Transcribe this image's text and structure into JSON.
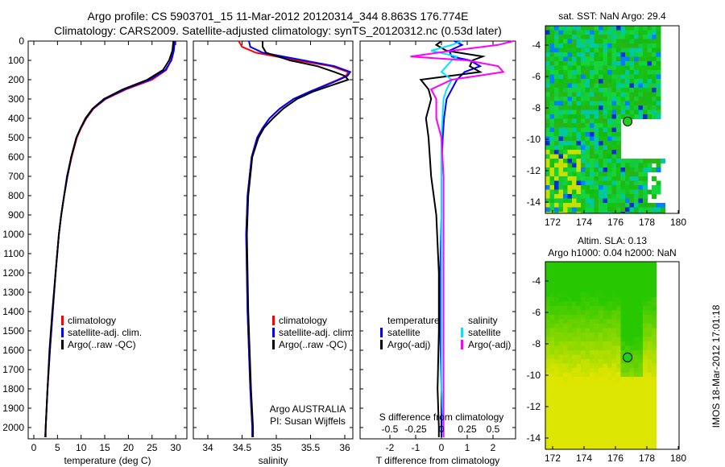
{
  "title": {
    "line1": "Argo profile: CS 5903701_15 11-Mar-2012 20120314_344 8.863S 176.774E",
    "line2": "Climatology: CARS2009. Satellite-adjusted climatology: synTS_20120312.nc (0.53d later)"
  },
  "colors": {
    "climatology": "#ff0000",
    "satellite": "#0000ff",
    "argo": "#000000",
    "sal_satellite": "#00e5ff",
    "sal_argo": "#ff00ff"
  },
  "chart_data": [
    {
      "type": "line",
      "name": "temperature",
      "xlabel": "temperature (deg C)",
      "xlim": [
        -1.2,
        31.5
      ],
      "ylim": [
        2050,
        0
      ],
      "xticks": [
        "0",
        "5",
        "10",
        "15",
        "20",
        "25",
        "30"
      ],
      "xtickvals": [
        0,
        5,
        10,
        15,
        20,
        25,
        30
      ],
      "yticks": [
        "0",
        "100",
        "200",
        "300",
        "400",
        "500",
        "600",
        "700",
        "800",
        "900",
        "1000",
        "1100",
        "1200",
        "1300",
        "1400",
        "1500",
        "1600",
        "1700",
        "1800",
        "1900",
        "2000"
      ],
      "depth": [
        0,
        50,
        100,
        150,
        200,
        250,
        300,
        350,
        400,
        450,
        500,
        600,
        700,
        800,
        900,
        1000,
        1200,
        1400,
        1600,
        1800,
        2000,
        2050
      ],
      "series": [
        {
          "name": "climatology",
          "color": "#ff0000",
          "values": [
            29.6,
            29.4,
            29.0,
            28.0,
            25.0,
            19.5,
            15.2,
            12.6,
            11.1,
            10.0,
            9.1,
            8.0,
            7.1,
            6.4,
            5.8,
            5.3,
            4.6,
            4.0,
            3.4,
            2.9,
            2.5,
            2.4
          ]
        },
        {
          "name": "satellite-adj. clim.",
          "color": "#0000ff",
          "values": [
            29.8,
            29.6,
            29.1,
            27.8,
            24.5,
            19.2,
            15.0,
            12.5,
            11.0,
            9.9,
            9.0,
            7.9,
            7.0,
            6.4,
            5.8,
            5.3,
            4.6,
            4.0,
            3.4,
            2.9,
            2.5,
            2.4
          ]
        },
        {
          "name": "Argo(..raw -QC)",
          "color": "#000000",
          "values": [
            29.5,
            29.3,
            28.6,
            27.3,
            24.0,
            18.8,
            14.8,
            12.4,
            10.9,
            9.9,
            9.0,
            7.9,
            7.1,
            6.4,
            5.8,
            5.3,
            4.6,
            3.9,
            3.3,
            2.9,
            2.5,
            2.5
          ]
        }
      ],
      "legend": [
        "climatology",
        "satellite-adj. clim.",
        "Argo(..raw -QC)"
      ]
    },
    {
      "type": "line",
      "name": "salinity",
      "xlabel": "salinity",
      "xlim": [
        33.7,
        36.1
      ],
      "xticks": [
        "34",
        "34.5",
        "35",
        "35.5",
        "36"
      ],
      "xtickvals": [
        34,
        34.5,
        35,
        35.5,
        36
      ],
      "depth": [
        0,
        30,
        60,
        100,
        130,
        160,
        180,
        200,
        230,
        260,
        300,
        350,
        400,
        450,
        500,
        600,
        800,
        1000,
        1400,
        1800,
        2000,
        2050
      ],
      "series": [
        {
          "name": "climatology",
          "color": "#ff0000",
          "values": [
            34.45,
            34.5,
            34.7,
            35.3,
            35.8,
            36.05,
            36.02,
            35.9,
            35.7,
            35.5,
            35.25,
            35.05,
            34.9,
            34.8,
            34.72,
            34.64,
            34.58,
            34.56,
            34.58,
            34.62,
            34.65,
            34.65
          ]
        },
        {
          "name": "satellite-adj. clim.",
          "color": "#0000ff",
          "values": [
            34.6,
            34.62,
            34.8,
            35.4,
            35.85,
            36.08,
            36.04,
            35.92,
            35.72,
            35.5,
            35.25,
            35.05,
            34.9,
            34.8,
            34.72,
            34.64,
            34.58,
            34.56,
            34.58,
            34.62,
            34.65,
            34.65
          ]
        },
        {
          "name": "Argo(..raw -QC)",
          "color": "#000000",
          "values": [
            34.8,
            34.8,
            34.85,
            35.2,
            35.6,
            35.85,
            36.0,
            36.05,
            35.8,
            35.55,
            35.3,
            35.1,
            34.95,
            34.82,
            34.74,
            34.65,
            34.59,
            34.57,
            34.59,
            34.63,
            34.66,
            34.66
          ]
        }
      ],
      "legend": [
        "climatology",
        "satellite-adj. clim.",
        "Argo(..raw -QC)"
      ],
      "annotation": [
        "Argo AUSTRALIA",
        "PI: Susan Wijffels"
      ]
    },
    {
      "type": "line",
      "name": "differences",
      "xlabel": "T difference from climatology",
      "xlabel_top": "S difference from climatology",
      "xlim": [
        -3.2,
        2.8
      ],
      "xticks": [
        "-2",
        "-1",
        "0",
        "1",
        "2"
      ],
      "xtickvals": [
        -2,
        -1,
        0,
        1,
        2
      ],
      "sticks": [
        "-0.5",
        "-0.25",
        "0",
        "0.25",
        "0.5"
      ],
      "stickvals": [
        -0.5,
        -0.25,
        0,
        0.25,
        0.5
      ],
      "depth": [
        0,
        20,
        50,
        80,
        100,
        130,
        160,
        200,
        250,
        300,
        400,
        500,
        700,
        900,
        1200,
        1500,
        1800,
        2000,
        2050
      ],
      "series": [
        {
          "name": "T satellite",
          "color": "#0000ff",
          "values": [
            0.5,
            0.8,
            0.3,
            0.4,
            1.1,
            1.5,
            0.9,
            0.6,
            0.4,
            0.2,
            0.1,
            0.05,
            0.0,
            0.0,
            -0.05,
            -0.05,
            0.0,
            0.0,
            0.0
          ]
        },
        {
          "name": "T Argo(-adj)",
          "color": "#000000",
          "values": [
            0.0,
            -0.2,
            0.2,
            1.6,
            1.2,
            1.1,
            1.5,
            -0.8,
            -0.5,
            -0.4,
            -0.6,
            -0.5,
            -0.4,
            -0.2,
            -0.1,
            -0.1,
            -0.15,
            -0.1,
            -0.1
          ]
        },
        {
          "name": "S satellite",
          "color": "#00e5ff",
          "values": [
            0.2,
            0.1,
            -0.1,
            0.15,
            0.1,
            0.05,
            0.0,
            0.1,
            0.05,
            0.02,
            0.01,
            0.0,
            0.0,
            0.0,
            0.0,
            0.0,
            0.0,
            0.02,
            0.02
          ]
        },
        {
          "name": "S Argo(-adj)",
          "color": "#ff00ff",
          "values": [
            0.7,
            0.55,
            0.1,
            -0.3,
            0.25,
            0.55,
            0.6,
            0.1,
            -0.1,
            -0.05,
            -0.05,
            0.0,
            0.02,
            0.02,
            0.02,
            0.02,
            0.02,
            0.02,
            0.02
          ]
        }
      ],
      "legend": {
        "temperature": "temperature",
        "salinity": "salinity",
        "t_sat": "satellite",
        "t_argo": "Argo(-adj)",
        "s_sat": "satellite",
        "s_argo": "Argo(-adj)"
      }
    },
    {
      "type": "heatmap",
      "name": "sst-map",
      "title": "sat. SST: NaN Argo: 29.4",
      "xticks": [
        "172",
        "174",
        "176",
        "178",
        "180"
      ],
      "yticks": [
        "-4",
        "-6",
        "-8",
        "-10",
        "-12",
        "-14"
      ],
      "xlim": [
        171.5,
        180.0
      ],
      "ylim": [
        -15,
        -3
      ],
      "argo_position": [
        176.774,
        -8.863
      ]
    },
    {
      "type": "heatmap",
      "name": "sla-map",
      "title1": "Altim. SLA: 0.13",
      "title2": "Argo h1000: 0.04 h2000: NaN",
      "xticks": [
        "172",
        "174",
        "176",
        "178",
        "180"
      ],
      "yticks": [
        "-4",
        "-6",
        "-8",
        "-10",
        "-12",
        "-14"
      ],
      "xlim": [
        171.5,
        180.0
      ],
      "ylim": [
        -15,
        -3
      ],
      "argo_position": [
        176.774,
        -8.863
      ]
    }
  ],
  "footer": "IMOS 18-Mar-2012 17:01:18"
}
